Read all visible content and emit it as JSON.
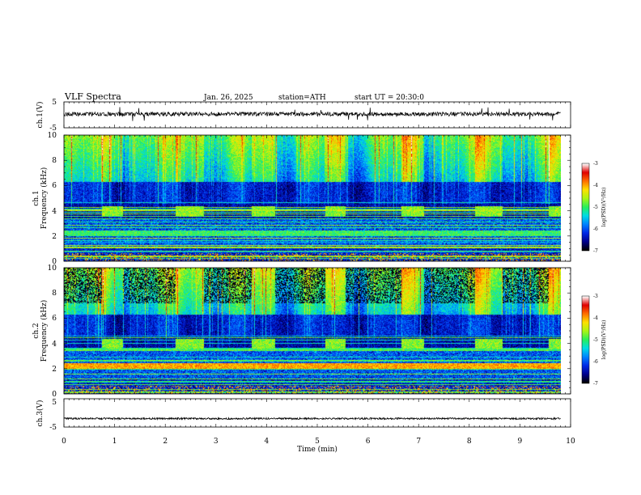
{
  "header": {
    "title": "VLF Spectra",
    "date": "Jan. 26, 2025",
    "station": "station=ATH",
    "start": "start UT = 20:30:0"
  },
  "chart_data": [
    {
      "type": "line",
      "name": "ch1-waveform",
      "ylabel": "ch.1(V)",
      "ylim": [
        -5,
        5
      ],
      "xlim": [
        0,
        10
      ],
      "yticks": [
        "5",
        "-5"
      ],
      "mean": 0.3,
      "spread": 0.8
    },
    {
      "type": "heatmap",
      "name": "ch1-spectrogram",
      "ylabel_top": "ch.1",
      "ylabel": "Frequency (kHz)",
      "ylim": [
        0,
        10
      ],
      "xlim": [
        0,
        10
      ],
      "yticks": [
        "0",
        "2",
        "4",
        "6",
        "8",
        "10"
      ],
      "colorbar": {
        "label": "log(PSD)(V²/Hz)",
        "range": [
          -7,
          -3
        ],
        "ticks": [
          "-3",
          "-4",
          "-5",
          "-6",
          "-7"
        ]
      },
      "bursts_min": [
        [
          0.75,
          1.15
        ],
        [
          2.2,
          2.75
        ],
        [
          3.7,
          4.15
        ],
        [
          5.15,
          5.55
        ],
        [
          6.65,
          7.1
        ],
        [
          8.1,
          8.65
        ],
        [
          9.55,
          9.8
        ]
      ],
      "burst_band_khz": [
        3.6,
        4.4
      ]
    },
    {
      "type": "heatmap",
      "name": "ch2-spectrogram",
      "ylabel_top": "ch.2",
      "ylabel": "Frequency (kHz)",
      "ylim": [
        0,
        10
      ],
      "xlim": [
        0,
        10
      ],
      "yticks": [
        "0",
        "2",
        "4",
        "6",
        "8",
        "10"
      ],
      "colorbar": {
        "label": "log(PSD)(V²/Hz)",
        "range": [
          -7,
          -3
        ],
        "ticks": [
          "-3",
          "-4",
          "-5",
          "-6",
          "-7"
        ]
      },
      "bursts_min": [
        [
          0.75,
          1.15
        ],
        [
          2.2,
          2.75
        ],
        [
          3.7,
          4.15
        ],
        [
          5.15,
          5.55
        ],
        [
          6.65,
          7.1
        ],
        [
          8.1,
          8.65
        ],
        [
          9.55,
          9.8
        ]
      ],
      "burst_band_khz": [
        3.6,
        4.4
      ]
    },
    {
      "type": "line",
      "name": "ch3-waveform",
      "ylabel": "ch.3(V)",
      "ylim": [
        -5,
        5
      ],
      "xlim": [
        0,
        10
      ],
      "yticks": [
        "5",
        "-5"
      ],
      "mean": -2.0,
      "spread": 0.3
    }
  ],
  "xaxis": {
    "label": "Time (min)",
    "ticks": [
      "0",
      "1",
      "2",
      "3",
      "4",
      "5",
      "6",
      "7",
      "8",
      "9",
      "10"
    ],
    "data_end_min": 9.8
  }
}
